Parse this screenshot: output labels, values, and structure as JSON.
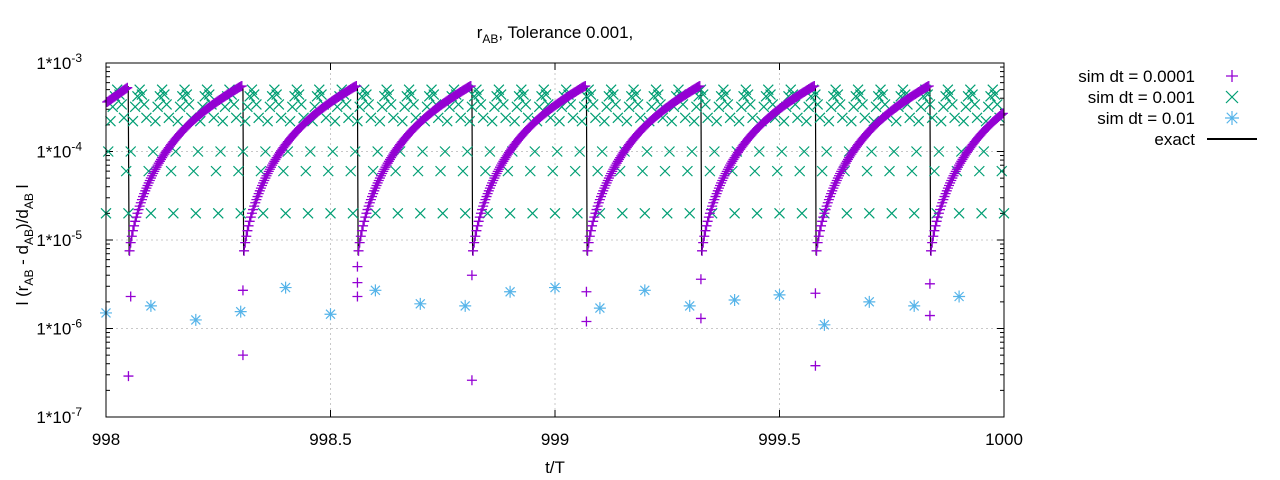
{
  "chart_data": {
    "type": "scatter",
    "title": {
      "main": "r",
      "sub": "AB",
      "rest": ", Tolerance 0.001,"
    },
    "xlabel": "t/T",
    "ylabel": {
      "p1": "l (r",
      "s1": "AB",
      "p2": " - d",
      "s2": "AB",
      "p3": ")/d",
      "s3": "AB",
      "p4": " l"
    },
    "xlim": [
      998,
      1000
    ],
    "ylim": [
      1e-07,
      0.001
    ],
    "yscale": "log",
    "grid": true,
    "legend_position": "outside-right",
    "x_ticks": [
      {
        "value": 998,
        "label": "998"
      },
      {
        "value": 998.5,
        "label": "998.5"
      },
      {
        "value": 999,
        "label": "999"
      },
      {
        "value": 999.5,
        "label": "999.5"
      },
      {
        "value": 1000,
        "label": "1000"
      }
    ],
    "y_ticks": [
      {
        "value": 0.001,
        "label": "1*10",
        "exp": "-3"
      },
      {
        "value": 0.0001,
        "label": "1*10",
        "exp": "-4"
      },
      {
        "value": 1e-05,
        "label": "1*10",
        "exp": "-5"
      },
      {
        "value": 1e-06,
        "label": "1*10",
        "exp": "-6"
      },
      {
        "value": 1e-07,
        "label": "1*10",
        "exp": "-7"
      }
    ],
    "series": [
      {
        "name": "sim dt = 0.0001",
        "marker": "plus",
        "color": "#9400d3",
        "description": "periodic arcs: error grows from ~1e-7 to ~5.5e-4 in each period",
        "period_starts": [
          998.0,
          998.05,
          998.305,
          998.56,
          998.815,
          999.07,
          999.325,
          999.58,
          999.835
        ],
        "arc_end_value": 0.00055,
        "extra_points": [
          {
            "x": 998.055,
            "y": 2.3e-06
          },
          {
            "x": 998.05,
            "y": 2.9e-07
          },
          {
            "x": 998.305,
            "y": 2.7e-06
          },
          {
            "x": 998.305,
            "y": 5e-07
          },
          {
            "x": 998.56,
            "y": 3.3e-06
          },
          {
            "x": 998.56,
            "y": 2.3e-06
          },
          {
            "x": 998.56,
            "y": 5e-06
          },
          {
            "x": 998.815,
            "y": 4e-06
          },
          {
            "x": 998.815,
            "y": 2.6e-07
          },
          {
            "x": 999.07,
            "y": 2.6e-06
          },
          {
            "x": 999.07,
            "y": 1.2e-06
          },
          {
            "x": 999.325,
            "y": 3.6e-06
          },
          {
            "x": 999.325,
            "y": 1.3e-06
          },
          {
            "x": 999.58,
            "y": 2.5e-06
          },
          {
            "x": 999.58,
            "y": 3.8e-07
          },
          {
            "x": 999.835,
            "y": 3.2e-06
          },
          {
            "x": 999.835,
            "y": 1.4e-06
          }
        ]
      },
      {
        "name": "sim dt = 0.001",
        "marker": "cross",
        "color": "#009e73",
        "description": "points repeating with period 0.05 in t/T",
        "pattern_offsets": [
          0.0,
          0.005,
          0.01,
          0.015,
          0.02,
          0.025,
          0.03,
          0.035,
          0.04,
          0.045
        ],
        "pattern_values": [
          2e-05,
          0.0001,
          0.00022,
          0.00032,
          0.00042,
          0.0005,
          0.00044,
          0.00034,
          0.00024,
          6e-05
        ]
      },
      {
        "name": "sim dt = 0.01",
        "marker": "star",
        "color": "#56b4e9",
        "points": [
          {
            "x": 998.0,
            "y": 1.5e-06
          },
          {
            "x": 998.1,
            "y": 1.8e-06
          },
          {
            "x": 998.2,
            "y": 1.25e-06
          },
          {
            "x": 998.3,
            "y": 1.55e-06
          },
          {
            "x": 998.4,
            "y": 2.9e-06
          },
          {
            "x": 998.5,
            "y": 1.45e-06
          },
          {
            "x": 998.6,
            "y": 2.7e-06
          },
          {
            "x": 998.7,
            "y": 1.9e-06
          },
          {
            "x": 998.8,
            "y": 1.8e-06
          },
          {
            "x": 998.9,
            "y": 2.6e-06
          },
          {
            "x": 999.0,
            "y": 2.9e-06
          },
          {
            "x": 999.1,
            "y": 1.7e-06
          },
          {
            "x": 999.2,
            "y": 2.7e-06
          },
          {
            "x": 999.3,
            "y": 1.8e-06
          },
          {
            "x": 999.4,
            "y": 2.1e-06
          },
          {
            "x": 999.5,
            "y": 2.4e-06
          },
          {
            "x": 999.6,
            "y": 1.1e-06
          },
          {
            "x": 999.7,
            "y": 2e-06
          },
          {
            "x": 999.8,
            "y": 1.8e-06
          },
          {
            "x": 999.9,
            "y": 2.3e-06
          }
        ]
      },
      {
        "name": "exact",
        "marker": "line",
        "color": "#000000",
        "description": "coincides with the dt = 0.0001 arcs (drawn underneath)"
      }
    ]
  }
}
